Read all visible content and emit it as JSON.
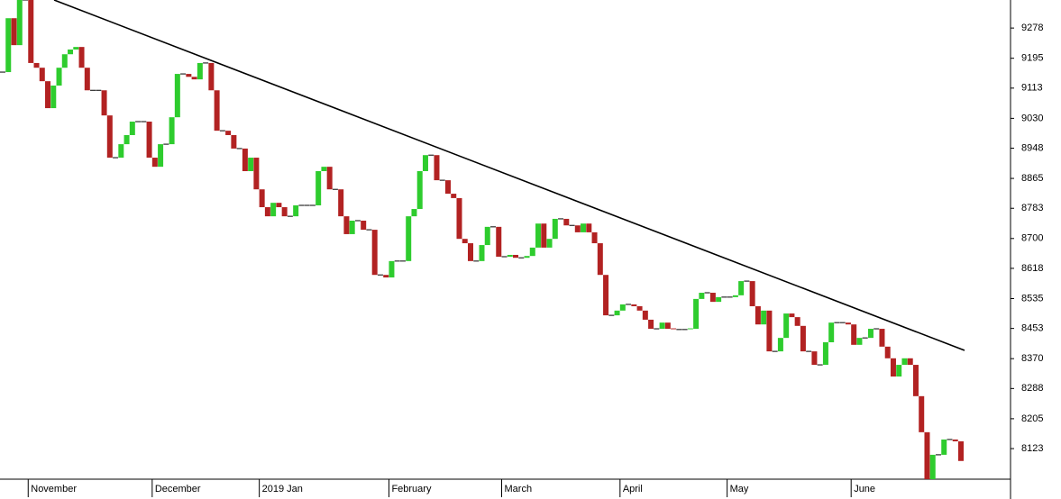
{
  "chart_data": {
    "type": "candlestick",
    "up_color": "#2ecc2e",
    "down_color": "#b22222",
    "grid": false,
    "ylim": [
      8039,
      9355
    ],
    "yticks": [
      9278,
      9195,
      9113,
      9030,
      8948,
      8865,
      8783,
      8700,
      8618,
      8535,
      8453,
      8370,
      8288,
      8205,
      8123
    ],
    "categories": [
      null,
      null,
      null,
      null,
      null,
      "November",
      null,
      null,
      null,
      null,
      null,
      null,
      null,
      null,
      null,
      null,
      null,
      null,
      null,
      null,
      null,
      null,
      null,
      null,
      null,
      null,
      null,
      "December",
      null,
      null,
      null,
      null,
      null,
      null,
      null,
      null,
      null,
      null,
      null,
      null,
      null,
      null,
      null,
      null,
      null,
      null,
      "2019 Jan",
      null,
      null,
      null,
      null,
      null,
      null,
      null,
      null,
      null,
      null,
      null,
      null,
      null,
      null,
      null,
      null,
      null,
      null,
      null,
      null,
      null,
      null,
      "February",
      null,
      null,
      null,
      null,
      null,
      null,
      null,
      null,
      null,
      null,
      null,
      null,
      null,
      null,
      null,
      null,
      null,
      null,
      null,
      "March",
      null,
      null,
      null,
      null,
      null,
      null,
      null,
      null,
      null,
      null,
      null,
      null,
      null,
      null,
      null,
      null,
      null,
      null,
      null,
      null,
      "April",
      null,
      null,
      null,
      null,
      null,
      null,
      null,
      null,
      null,
      null,
      null,
      null,
      null,
      null,
      null,
      null,
      null,
      null,
      "May",
      null,
      null,
      null,
      null,
      null,
      null,
      null,
      null,
      null,
      null,
      null,
      null,
      null,
      null,
      null,
      null,
      null,
      null,
      null,
      null,
      null,
      "June",
      null,
      null,
      null,
      null,
      null,
      null,
      null,
      null,
      null,
      null,
      null,
      null,
      null,
      null,
      null,
      null,
      null,
      null,
      null
    ],
    "values": [
      9157,
      9305,
      9231,
      9355,
      9355,
      9182,
      9169,
      9132,
      9058,
      9120,
      9169,
      9206,
      9219,
      9226,
      9169,
      9107,
      9107,
      9107,
      9038,
      8922,
      8922,
      8959,
      8984,
      9021,
      9021,
      9021,
      8922,
      8897,
      8959,
      8959,
      9033,
      9152,
      9152,
      9144,
      9137,
      9182,
      9182,
      9107,
      8996,
      8996,
      8984,
      8947,
      8947,
      8885,
      8922,
      8835,
      8786,
      8761,
      8798,
      8786,
      8761,
      8761,
      8791,
      8791,
      8791,
      8791,
      8885,
      8897,
      8835,
      8835,
      8761,
      8712,
      8749,
      8749,
      8724,
      8724,
      8600,
      8600,
      8593,
      8638,
      8638,
      8638,
      8761,
      8781,
      8885,
      8929,
      8929,
      8860,
      8860,
      8823,
      8811,
      8699,
      8687,
      8638,
      8638,
      8682,
      8732,
      8732,
      8650,
      8650,
      8655,
      8647,
      8647,
      8652,
      8675,
      8741,
      8675,
      8699,
      8754,
      8754,
      8736,
      8736,
      8717,
      8741,
      8717,
      8687,
      8600,
      8489,
      8489,
      8502,
      8519,
      8519,
      8514,
      8502,
      8477,
      8452,
      8452,
      8469,
      8452,
      8450,
      8450,
      8450,
      8452,
      8534,
      8551,
      8551,
      8526,
      8539,
      8539,
      8539,
      8544,
      8583,
      8583,
      8514,
      8464,
      8502,
      8390,
      8390,
      8427,
      8494,
      8484,
      8460,
      8390,
      8390,
      8353,
      8353,
      8415,
      8469,
      8469,
      8469,
      8464,
      8408,
      8427,
      8427,
      8452,
      8452,
      8403,
      8371,
      8321,
      8353,
      8371,
      8353,
      8267,
      8168,
      8039,
      8106,
      8106,
      8148,
      8148,
      8143,
      8089
    ]
  }
}
